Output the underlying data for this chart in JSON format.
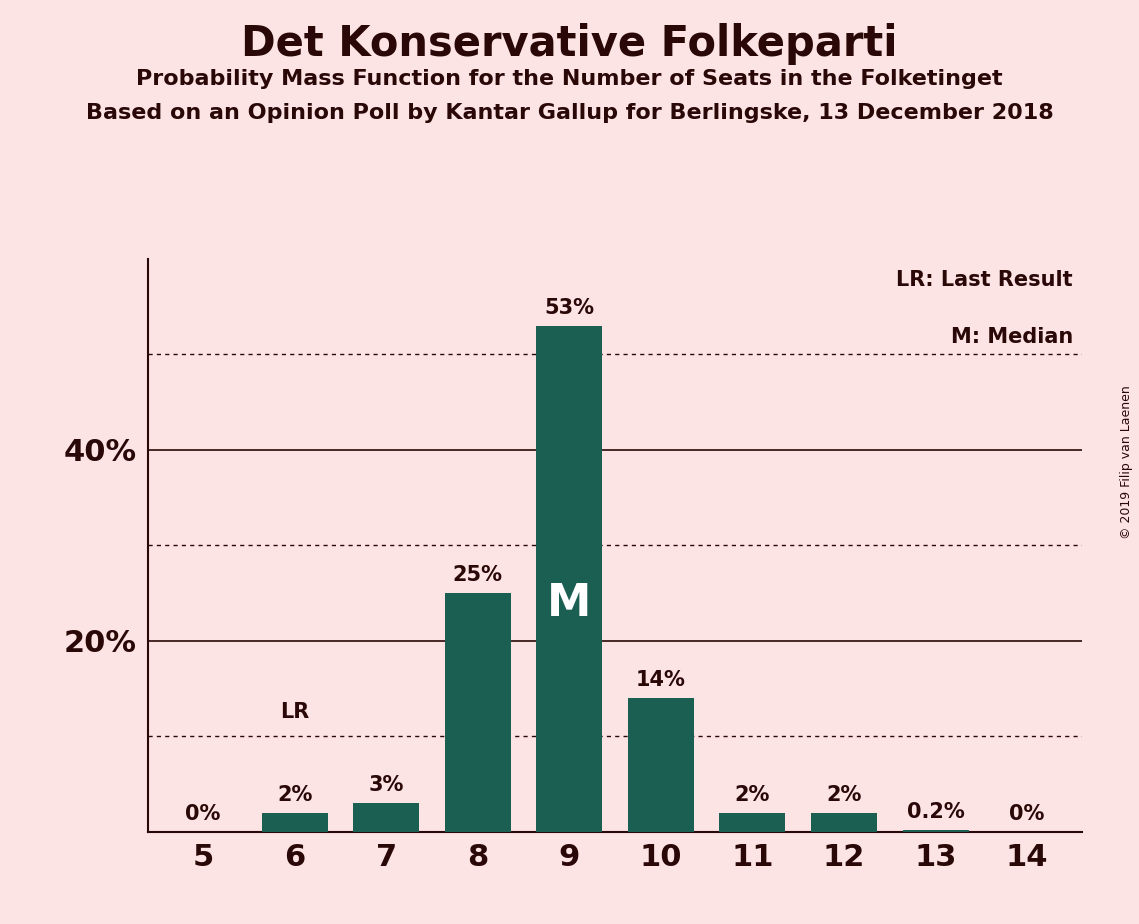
{
  "title": "Det Konservative Folkeparti",
  "subtitle1": "Probability Mass Function for the Number of Seats in the Folketinget",
  "subtitle2": "Based on an Opinion Poll by Kantar Gallup for Berlingske, 13 December 2018",
  "copyright": "© 2019 Filip van Laenen",
  "seats": [
    5,
    6,
    7,
    8,
    9,
    10,
    11,
    12,
    13,
    14
  ],
  "probabilities": [
    0.0,
    2.0,
    3.0,
    25.0,
    53.0,
    14.0,
    2.0,
    2.0,
    0.2,
    0.0
  ],
  "bar_color": "#1b5e52",
  "background_color": "#fce4e4",
  "bar_labels": [
    "0%",
    "2%",
    "3%",
    "25%",
    "53%",
    "14%",
    "2%",
    "2%",
    "0.2%",
    "0%"
  ],
  "bar_label_color": "#2a0808",
  "median_seat": 9,
  "last_result_seat": 6,
  "ylim_max": 60,
  "yticks_solid": [
    20,
    40
  ],
  "yticks_dotted": [
    10,
    30,
    50
  ],
  "legend_lr": "LR: Last Result",
  "legend_m": "M: Median"
}
